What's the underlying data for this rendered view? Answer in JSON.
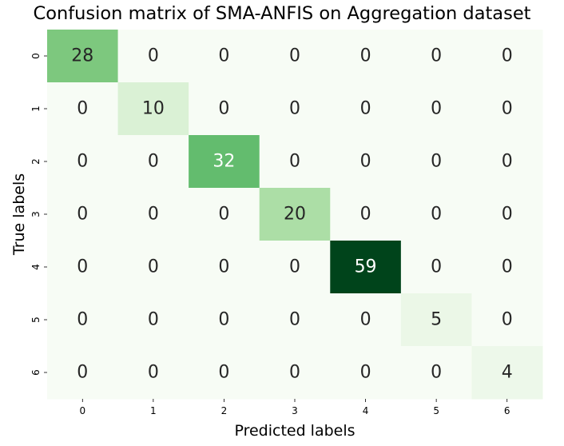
{
  "chart_data": {
    "type": "heatmap",
    "title": "Confusion matrix of SMA-ANFIS on Aggregation dataset",
    "xlabel": "Predicted labels",
    "ylabel": "True labels",
    "x_categories": [
      "0",
      "1",
      "2",
      "3",
      "4",
      "5",
      "6"
    ],
    "y_categories": [
      "0",
      "1",
      "2",
      "3",
      "4",
      "5",
      "6"
    ],
    "values": [
      [
        28,
        0,
        0,
        0,
        0,
        0,
        0
      ],
      [
        0,
        10,
        0,
        0,
        0,
        0,
        0
      ],
      [
        0,
        0,
        32,
        0,
        0,
        0,
        0
      ],
      [
        0,
        0,
        0,
        20,
        0,
        0,
        0
      ],
      [
        0,
        0,
        0,
        0,
        59,
        0,
        0
      ],
      [
        0,
        0,
        0,
        0,
        0,
        5,
        0
      ],
      [
        0,
        0,
        0,
        0,
        0,
        0,
        4
      ]
    ],
    "colormap": "Greens",
    "colorbar": false,
    "annotate": true
  }
}
